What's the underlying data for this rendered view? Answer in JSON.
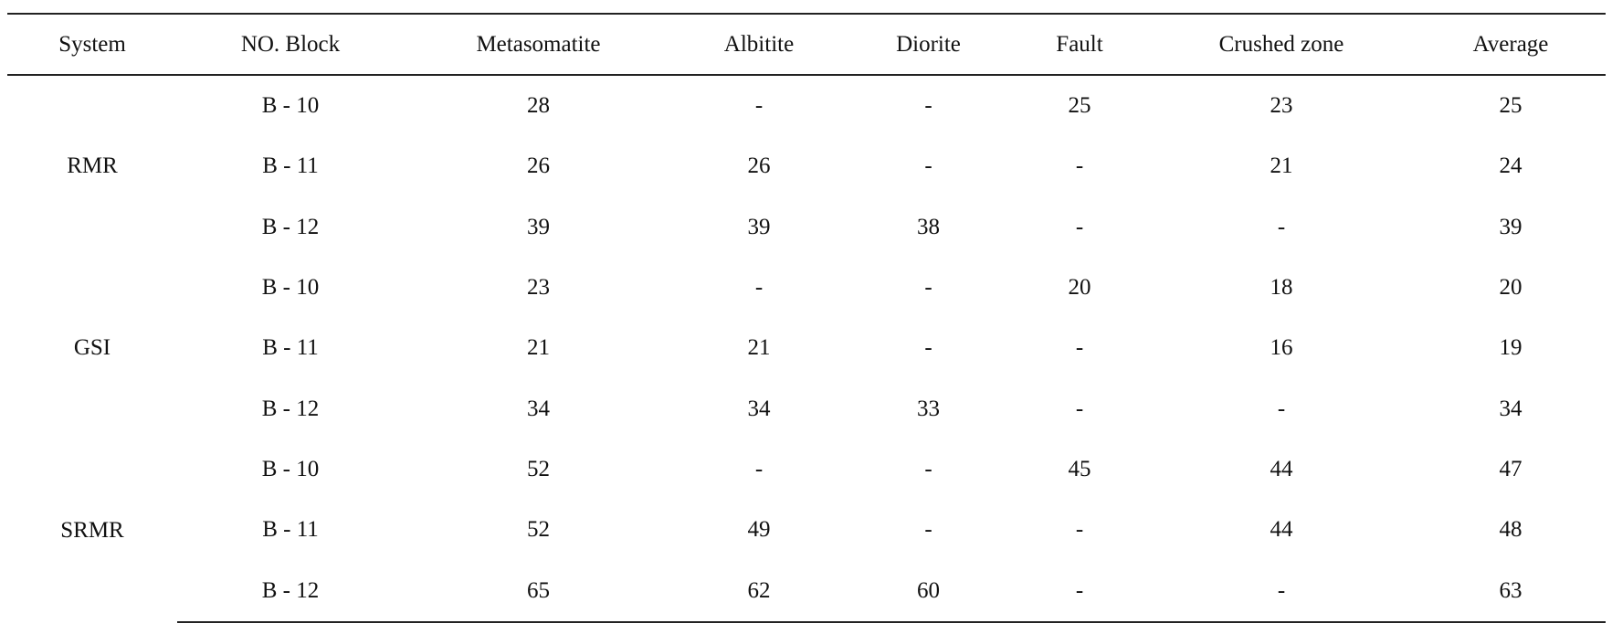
{
  "table": {
    "headers": [
      "System",
      "NO. Block",
      "Metasomatite",
      "Albitite",
      "Diorite",
      "Fault",
      "Crushed zone",
      "Average"
    ],
    "groups": [
      {
        "system": "RMR",
        "rows": [
          [
            "B - 10",
            "28",
            "-",
            "-",
            "25",
            "23",
            "25"
          ],
          [
            "B - 11",
            "26",
            "26",
            "-",
            "-",
            "21",
            "24"
          ],
          [
            "B - 12",
            "39",
            "39",
            "38",
            "-",
            "-",
            "39"
          ]
        ]
      },
      {
        "system": "GSI",
        "rows": [
          [
            "B - 10",
            "23",
            "-",
            "-",
            "20",
            "18",
            "20"
          ],
          [
            "B - 11",
            "21",
            "21",
            "-",
            "-",
            "16",
            "19"
          ],
          [
            "B - 12",
            "34",
            "34",
            "33",
            "-",
            "-",
            "34"
          ]
        ]
      },
      {
        "system": "SRMR",
        "rows": [
          [
            "B - 10",
            "52",
            "-",
            "-",
            "45",
            "44",
            "47"
          ],
          [
            "B - 11",
            "52",
            "49",
            "-",
            "-",
            "44",
            "48"
          ],
          [
            "B - 12",
            "65",
            "62",
            "60",
            "-",
            "-",
            "63"
          ]
        ]
      }
    ]
  }
}
